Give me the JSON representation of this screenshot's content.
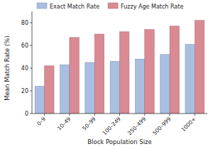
{
  "chart_data": {
    "type": "bar",
    "categories": [
      "0–9",
      "10–49",
      "50–99",
      "100–249",
      "250–499",
      "500–999",
      "1000+"
    ],
    "series": [
      {
        "name": "Exact Match Rate",
        "color": "#a9bfe2",
        "values": [
          24,
          43,
          45,
          46,
          48,
          52,
          61
        ]
      },
      {
        "name": "Fuzzy Age Match Rate",
        "color": "#d98a92",
        "values": [
          42,
          67,
          70,
          72,
          74,
          77,
          82
        ]
      }
    ],
    "x_label": "Block Population Size",
    "y_label": "Mean Match Rate (%)",
    "ylim": [
      0,
      90
    ],
    "yticks": [
      0,
      20,
      40,
      60,
      80
    ],
    "grid": false,
    "legend": "top"
  }
}
